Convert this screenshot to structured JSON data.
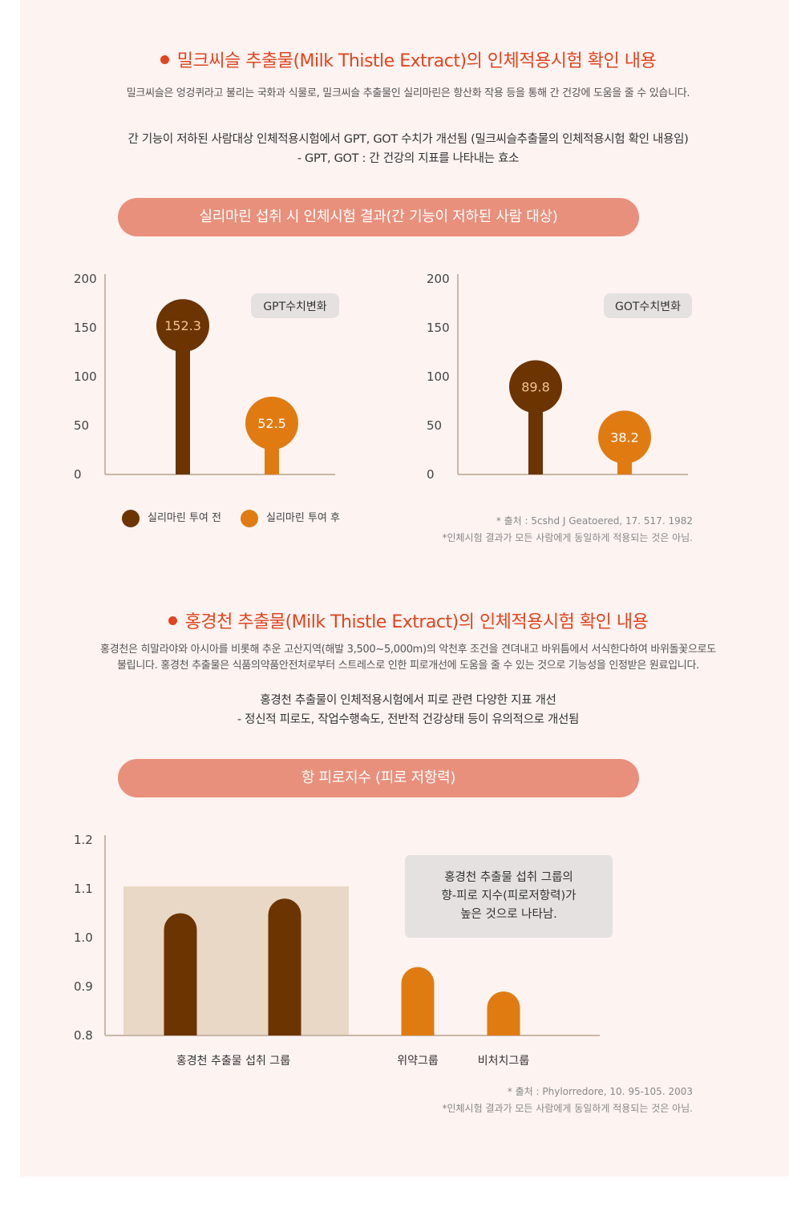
{
  "section1": {
    "title": "밀크씨슬 추출물(Milk Thistle Extract)의 인체적용시험 확인 내용",
    "desc": "밀크씨슬은 엉겅퀴라고 불리는 국화과 식물로, 밀크씨슬 추출물인 실리마린은 항산화 작용 등을 통해 간 건강에  도움을 줄 수 있습니다.",
    "sub_line1": "간 기능이 저하된 사람대상 인체적용시험에서 GPT, GOT 수치가 개선됨 (밀크씨슬추출물의 인체적용시험 확인 내용임)",
    "sub_line2": "- GPT, GOT : 간 건강의 지표를 나타내는 효소",
    "pill": "실리마린 섭취 시 인체시험 결과(간 기능이 저하된 사람 대상)",
    "legend_before": "실리마린 투여 전",
    "legend_after": "실리마린 투여 후",
    "source1": "* 출처 : 5cshd J Geatoered, 17. 517. 1982",
    "source2": "*인체시험 결과가 모든 사람에게 동일하게 적용되는 것은 아님."
  },
  "section2": {
    "title": "홍경천 추출물(Milk Thistle Extract)의 인체적용시험 확인 내용",
    "desc_line1": "홍경천은 히말라야와 아시아를 비롯해 추운 고산지역(해발 3,500~5,000m)의 악천후 조건을 견뎌내고 바위틈에서 서식한다하여 바위돌꽃으로도",
    "desc_line2": "불립니다. 홍경천 추출물은 식품의약품안전처로부터 스트레스로 인한 피로개선에 도움을 줄 수 있는 것으로 기능성을 인정받은 원료입니다.",
    "sub_line1": "홍경천 추출물이 인체적용시험에서 피로 관련 다양한 지표 개선",
    "sub_line2": "- 정신적 피로도, 작업수행속도, 전반적 건강상태 등이 유의적으로 개선됨",
    "pill": "항 피로지수 (피로 저항력)",
    "note_line1": "홍경천 추출물 섭취 그룹의",
    "note_line2": "향-피로 지수(피로저항력)가",
    "note_line3": "높은 것으로 나타남.",
    "source1": "* 출처 : Phylorredore, 10. 95-105. 2003",
    "source2": "*인체시험 결과가 모든 사람에게 동일하게 적용되는 것은 아님."
  },
  "colors": {
    "before": "#6b3400",
    "after": "#e07b12",
    "title": "#e0451f",
    "pill": "#e8907b",
    "panel": "#fdf3f1",
    "highlight": "#e9d8c6"
  },
  "chart_data": [
    {
      "type": "bar",
      "title": "GPT수치변화",
      "yticks": [
        0,
        50,
        100,
        150,
        200
      ],
      "ylim": [
        0,
        200
      ],
      "categories": [
        "실리마린 투여 전",
        "실리마린 투여 후"
      ],
      "values": [
        152.3,
        52.5
      ],
      "value_labels": [
        "152.3",
        "52.5"
      ],
      "legend": "bottom"
    },
    {
      "type": "bar",
      "title": "GOT수치변화",
      "yticks": [
        0,
        50,
        100,
        150,
        200
      ],
      "ylim": [
        0,
        200
      ],
      "categories": [
        "실리마린 투여 전",
        "실리마린 투여 후"
      ],
      "values": [
        89.8,
        38.2
      ],
      "value_labels": [
        "89.8",
        "38.2"
      ],
      "legend": "bottom"
    },
    {
      "type": "bar",
      "ylim": [
        0.8,
        1.2
      ],
      "yticks": [
        "0.8",
        "0.9",
        "1.0",
        "1.1",
        "1.2"
      ],
      "groups": [
        {
          "label": "홍경천 추출물 섭취 그룹",
          "values": [
            1.05,
            1.08
          ],
          "highlighted": true
        },
        {
          "label": "위약그룹",
          "values": [
            0.94
          ]
        },
        {
          "label": "비처치그룹",
          "values": [
            0.89
          ]
        }
      ]
    }
  ]
}
